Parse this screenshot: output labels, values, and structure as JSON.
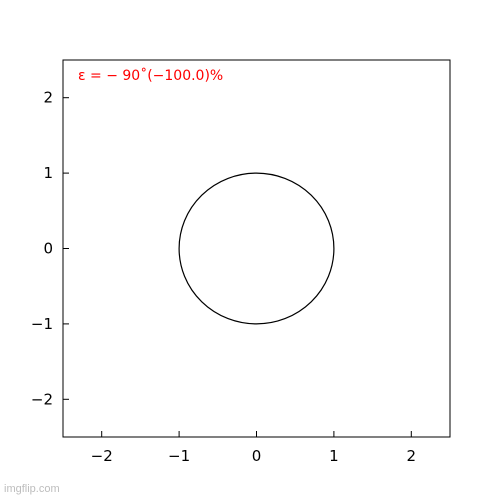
{
  "chart_data": {
    "type": "line",
    "title": "",
    "xlabel": "",
    "ylabel": "",
    "xlim": [
      -2.5,
      2.5
    ],
    "ylim": [
      -2.5,
      2.5
    ],
    "xticks": [
      -2,
      -1,
      0,
      1,
      2
    ],
    "yticks": [
      -2,
      -1,
      0,
      1,
      2
    ],
    "xtick_labels": [
      "−2",
      "−1",
      "0",
      "1",
      "2"
    ],
    "ytick_labels": [
      "−2",
      "−1",
      "0",
      "1",
      "2"
    ],
    "grid": false,
    "legend": "none",
    "annotation": {
      "text": "ε = − 90˚(−100.0)%",
      "color": "#ff0000",
      "placement": "top-left"
    },
    "series": [
      {
        "shape": "circle",
        "center": [
          0,
          0
        ],
        "radius": 1,
        "color": "#000000"
      }
    ]
  },
  "watermark": "imgflip.com"
}
